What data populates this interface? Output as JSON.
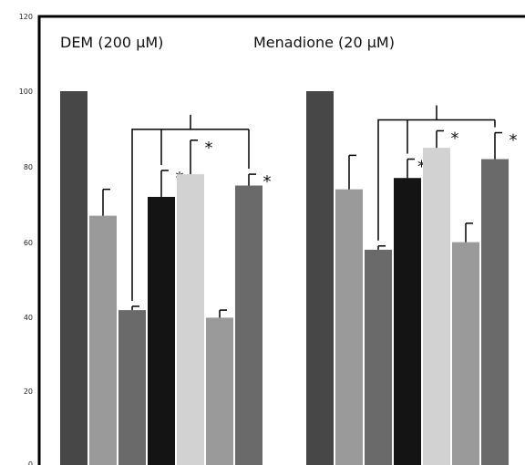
{
  "chart_data": {
    "type": "bar",
    "ylim": [
      0,
      120
    ],
    "yticks": [
      0,
      20,
      40,
      60,
      80,
      100,
      120
    ],
    "grid": false,
    "groups": [
      {
        "title": "DEM (200 μM)",
        "bars": [
          {
            "value": 100,
            "error": null,
            "color": "#474747",
            "sig": ""
          },
          {
            "value": 67,
            "error": 7,
            "color": "#9a9a9a",
            "sig": ""
          },
          {
            "value": 42,
            "error": 1,
            "color": "#6a6a6a",
            "sig": ""
          },
          {
            "value": 72,
            "error": 7,
            "color": "#141414",
            "sig": "*"
          },
          {
            "value": 78,
            "error": 9,
            "color": "#d2d2d2",
            "sig": "*"
          },
          {
            "value": 40,
            "error": 2,
            "color": "#9a9a9a",
            "sig": ""
          },
          {
            "value": 75,
            "error": 3,
            "color": "#6a6a6a",
            "sig": "*"
          }
        ]
      },
      {
        "title": "Menadione (20 μM)",
        "bars": [
          {
            "value": 100,
            "error": null,
            "color": "#474747",
            "sig": ""
          },
          {
            "value": 74,
            "error": 9,
            "color": "#9a9a9a",
            "sig": ""
          },
          {
            "value": 58,
            "error": 1,
            "color": "#6a6a6a",
            "sig": ""
          },
          {
            "value": 77,
            "error": 5,
            "color": "#141414",
            "sig": "**"
          },
          {
            "value": 85,
            "error": 4.5,
            "color": "#d2d2d2",
            "sig": "*"
          },
          {
            "value": 60,
            "error": 5,
            "color": "#9a9a9a",
            "sig": ""
          },
          {
            "value": 82,
            "error": 7,
            "color": "#6a6a6a",
            "sig": "*"
          }
        ]
      }
    ]
  }
}
